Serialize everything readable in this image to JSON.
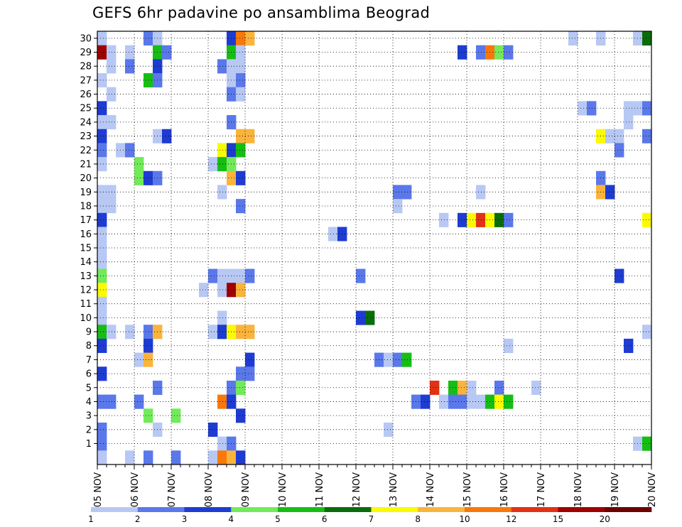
{
  "chart_data": {
    "type": "heatmap",
    "title": "GEFS 6hr padavine po ansamblima Beograd",
    "x_ticks": [
      "05 NOV",
      "06 NOV",
      "07 NOV",
      "08 NOV",
      "09 NOV",
      "10 NOV",
      "11 NOV",
      "12 NOV",
      "13 NOV",
      "14 NOV",
      "15 NOV",
      "16 NOV",
      "17 NOV",
      "18 NOV",
      "19 NOV",
      "20 NOV"
    ],
    "x_range": [
      "05 NOV",
      "20 NOV"
    ],
    "x_step": "6hr",
    "y_range": [
      0,
      30
    ],
    "y_ticks": [
      1,
      2,
      3,
      4,
      5,
      6,
      7,
      8,
      9,
      10,
      11,
      12,
      13,
      14,
      15,
      16,
      17,
      18,
      19,
      20,
      21,
      22,
      23,
      24,
      25,
      26,
      27,
      28,
      29,
      30
    ],
    "grid": true,
    "legend": {
      "placement": "bottom",
      "bounds": [
        1,
        2,
        3,
        4,
        5,
        6,
        7,
        8,
        10,
        12,
        15,
        20
      ],
      "colors": [
        "#b8c8f4",
        "#5a78ea",
        "#1e3cd2",
        "#72ea5a",
        "#16be14",
        "#0a6c0a",
        "#fafa00",
        "#fab43c",
        "#f8780a",
        "#e13214",
        "#a00000",
        "#6e0000"
      ]
    },
    "cells": [
      [
        1,
        30,
        1
      ],
      [
        6,
        30,
        2
      ],
      [
        7,
        30,
        1
      ],
      [
        15,
        30,
        3
      ],
      [
        16,
        30,
        9
      ],
      [
        17,
        30,
        8
      ],
      [
        52,
        30,
        1
      ],
      [
        55,
        30,
        1
      ],
      [
        59,
        30,
        1
      ],
      [
        60,
        30,
        6
      ],
      [
        1,
        29,
        11
      ],
      [
        2,
        29,
        1
      ],
      [
        4,
        29,
        1
      ],
      [
        7,
        29,
        5
      ],
      [
        8,
        29,
        2
      ],
      [
        15,
        29,
        5
      ],
      [
        16,
        29,
        1
      ],
      [
        40,
        29,
        3
      ],
      [
        42,
        29,
        2
      ],
      [
        43,
        29,
        9
      ],
      [
        44,
        29,
        4
      ],
      [
        45,
        29,
        2
      ],
      [
        2,
        28,
        1
      ],
      [
        4,
        28,
        2
      ],
      [
        7,
        28,
        3
      ],
      [
        14,
        28,
        2
      ],
      [
        15,
        28,
        1
      ],
      [
        16,
        28,
        1
      ],
      [
        1,
        27,
        1
      ],
      [
        6,
        27,
        5
      ],
      [
        7,
        27,
        2
      ],
      [
        15,
        27,
        1
      ],
      [
        16,
        27,
        2
      ],
      [
        2,
        26,
        1
      ],
      [
        15,
        26,
        2
      ],
      [
        16,
        26,
        1
      ],
      [
        1,
        25,
        3
      ],
      [
        53,
        25,
        1
      ],
      [
        54,
        25,
        2
      ],
      [
        58,
        25,
        1
      ],
      [
        59,
        25,
        1
      ],
      [
        60,
        25,
        2
      ],
      [
        1,
        24,
        1
      ],
      [
        2,
        24,
        1
      ],
      [
        15,
        24,
        2
      ],
      [
        58,
        24,
        1
      ],
      [
        1,
        23,
        3
      ],
      [
        7,
        23,
        1
      ],
      [
        8,
        23,
        3
      ],
      [
        16,
        23,
        8
      ],
      [
        17,
        23,
        8
      ],
      [
        55,
        23,
        7
      ],
      [
        56,
        23,
        1
      ],
      [
        57,
        23,
        1
      ],
      [
        60,
        23,
        2
      ],
      [
        1,
        22,
        2
      ],
      [
        3,
        22,
        1
      ],
      [
        4,
        22,
        2
      ],
      [
        14,
        22,
        7
      ],
      [
        15,
        22,
        3
      ],
      [
        16,
        22,
        5
      ],
      [
        57,
        22,
        2
      ],
      [
        1,
        21,
        1
      ],
      [
        5,
        21,
        4
      ],
      [
        13,
        21,
        1
      ],
      [
        14,
        21,
        5
      ],
      [
        15,
        21,
        4
      ],
      [
        5,
        20,
        4
      ],
      [
        6,
        20,
        3
      ],
      [
        7,
        20,
        2
      ],
      [
        15,
        20,
        8
      ],
      [
        16,
        20,
        3
      ],
      [
        55,
        20,
        2
      ],
      [
        1,
        19,
        1
      ],
      [
        2,
        19,
        1
      ],
      [
        14,
        19,
        1
      ],
      [
        33,
        19,
        2
      ],
      [
        34,
        19,
        2
      ],
      [
        42,
        19,
        1
      ],
      [
        55,
        19,
        8
      ],
      [
        56,
        19,
        3
      ],
      [
        1,
        18,
        1
      ],
      [
        2,
        18,
        1
      ],
      [
        16,
        18,
        2
      ],
      [
        33,
        18,
        1
      ],
      [
        1,
        17,
        3
      ],
      [
        38,
        17,
        1
      ],
      [
        40,
        17,
        3
      ],
      [
        41,
        17,
        7
      ],
      [
        42,
        17,
        10
      ],
      [
        43,
        17,
        7
      ],
      [
        44,
        17,
        6
      ],
      [
        45,
        17,
        2
      ],
      [
        60,
        17,
        7
      ],
      [
        1,
        16,
        1
      ],
      [
        26,
        16,
        1
      ],
      [
        27,
        16,
        3
      ],
      [
        1,
        15,
        1
      ],
      [
        1,
        14,
        1
      ],
      [
        1,
        13,
        4
      ],
      [
        13,
        13,
        2
      ],
      [
        14,
        13,
        1
      ],
      [
        15,
        13,
        1
      ],
      [
        16,
        13,
        1
      ],
      [
        17,
        13,
        2
      ],
      [
        29,
        13,
        2
      ],
      [
        57,
        13,
        3
      ],
      [
        1,
        12,
        7
      ],
      [
        12,
        12,
        1
      ],
      [
        14,
        12,
        1
      ],
      [
        15,
        12,
        11
      ],
      [
        16,
        12,
        8
      ],
      [
        1,
        11,
        1
      ],
      [
        1,
        10,
        1
      ],
      [
        14,
        10,
        1
      ],
      [
        29,
        10,
        3
      ],
      [
        30,
        10,
        6
      ],
      [
        1,
        9,
        5
      ],
      [
        2,
        9,
        1
      ],
      [
        4,
        9,
        1
      ],
      [
        6,
        9,
        2
      ],
      [
        7,
        9,
        8
      ],
      [
        13,
        9,
        1
      ],
      [
        14,
        9,
        3
      ],
      [
        15,
        9,
        7
      ],
      [
        16,
        9,
        8
      ],
      [
        17,
        9,
        8
      ],
      [
        60,
        9,
        1
      ],
      [
        1,
        8,
        3
      ],
      [
        6,
        8,
        3
      ],
      [
        45,
        8,
        1
      ],
      [
        58,
        8,
        3
      ],
      [
        5,
        7,
        1
      ],
      [
        6,
        7,
        8
      ],
      [
        17,
        7,
        3
      ],
      [
        31,
        7,
        2
      ],
      [
        32,
        7,
        1
      ],
      [
        33,
        7,
        2
      ],
      [
        34,
        7,
        5
      ],
      [
        1,
        6,
        3
      ],
      [
        16,
        6,
        2
      ],
      [
        17,
        6,
        2
      ],
      [
        7,
        5,
        2
      ],
      [
        15,
        5,
        2
      ],
      [
        16,
        5,
        4
      ],
      [
        37,
        5,
        10
      ],
      [
        39,
        5,
        5
      ],
      [
        40,
        5,
        8
      ],
      [
        41,
        5,
        1
      ],
      [
        44,
        5,
        2
      ],
      [
        48,
        5,
        1
      ],
      [
        1,
        4,
        2
      ],
      [
        2,
        4,
        2
      ],
      [
        5,
        4,
        2
      ],
      [
        14,
        4,
        9
      ],
      [
        15,
        4,
        3
      ],
      [
        35,
        4,
        2
      ],
      [
        36,
        4,
        3
      ],
      [
        38,
        4,
        1
      ],
      [
        39,
        4,
        2
      ],
      [
        40,
        4,
        2
      ],
      [
        41,
        4,
        1
      ],
      [
        42,
        4,
        1
      ],
      [
        43,
        4,
        5
      ],
      [
        44,
        4,
        7
      ],
      [
        45,
        4,
        5
      ],
      [
        6,
        3,
        4
      ],
      [
        9,
        3,
        4
      ],
      [
        16,
        3,
        3
      ],
      [
        1,
        2,
        2
      ],
      [
        7,
        2,
        1
      ],
      [
        13,
        2,
        3
      ],
      [
        32,
        2,
        1
      ],
      [
        1,
        1,
        2
      ],
      [
        14,
        1,
        1
      ],
      [
        15,
        1,
        2
      ],
      [
        59,
        1,
        1
      ],
      [
        60,
        1,
        5
      ],
      [
        1,
        0,
        1
      ],
      [
        4,
        0,
        1
      ],
      [
        6,
        0,
        2
      ],
      [
        9,
        0,
        2
      ],
      [
        13,
        0,
        1
      ],
      [
        14,
        0,
        9
      ],
      [
        15,
        0,
        8
      ],
      [
        16,
        0,
        3
      ]
    ]
  }
}
